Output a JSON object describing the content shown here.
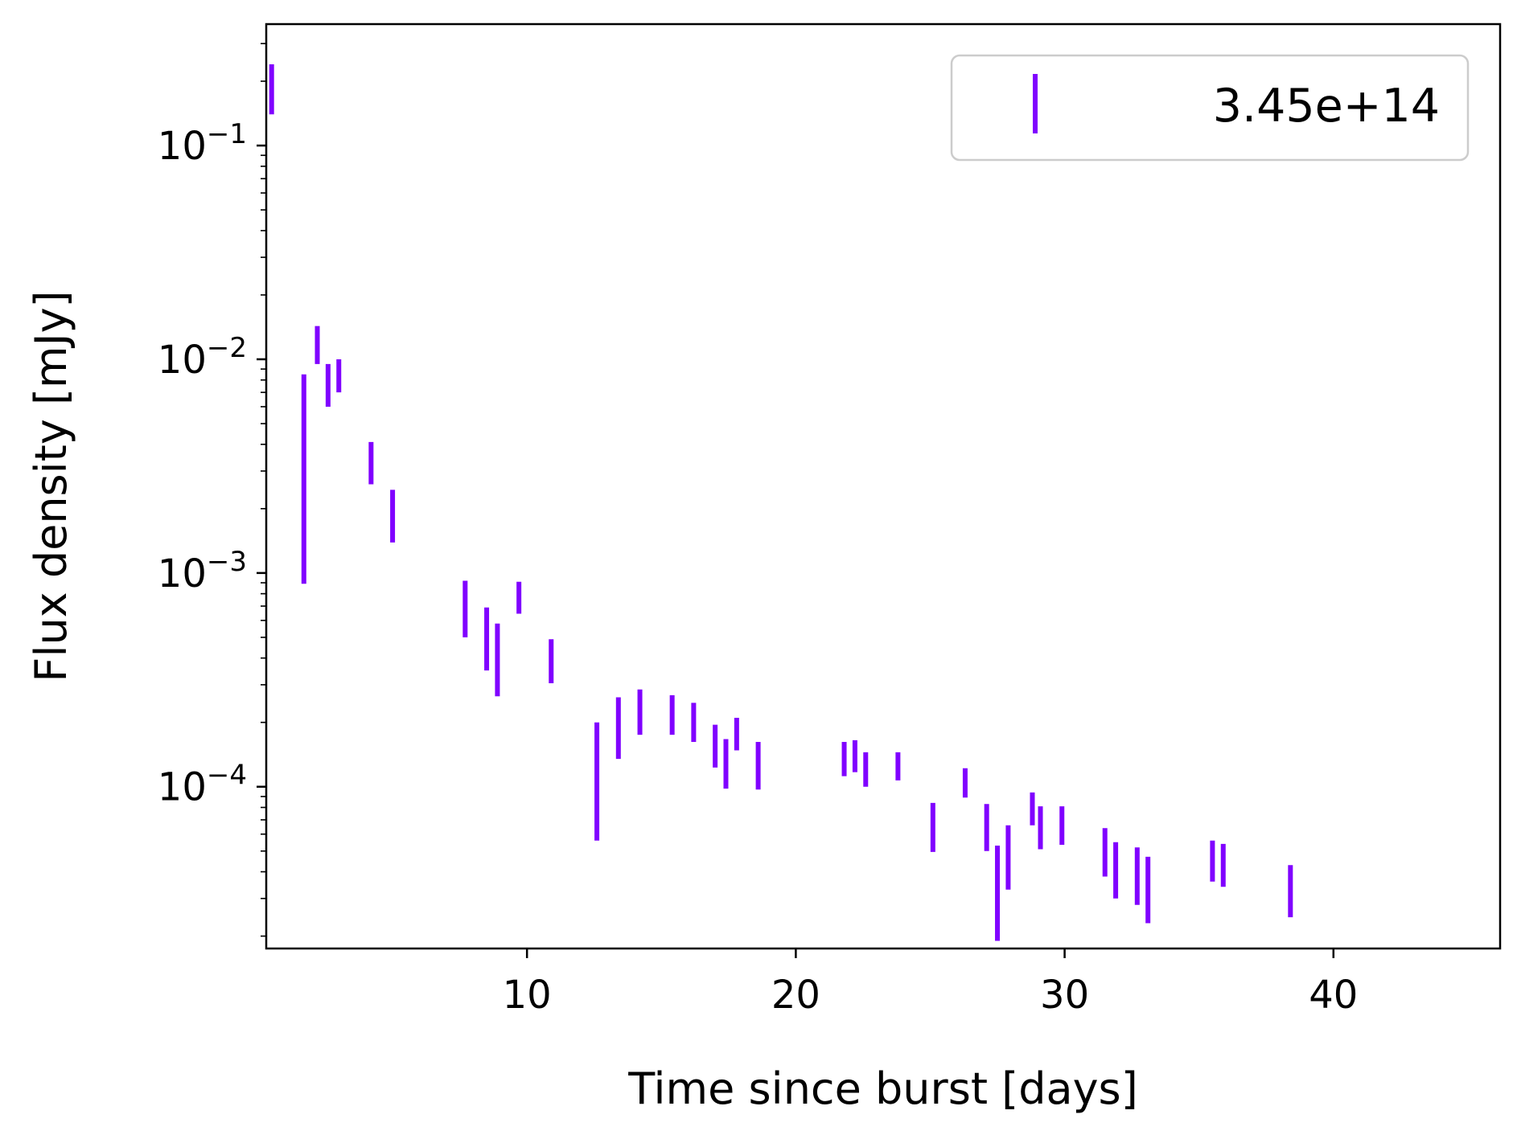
{
  "chart_data": {
    "type": "scatter",
    "marker": "errorbar",
    "xlabel": "Time since burst [days]",
    "ylabel": "Flux density [mJy]",
    "x_scale": "linear",
    "y_scale": "log",
    "xlim": [
      0.3,
      46.2
    ],
    "ylim": [
      1.75e-05,
      0.37
    ],
    "x_ticks": [
      10,
      20,
      30,
      40
    ],
    "x_tick_labels": [
      "10",
      "20",
      "30",
      "40"
    ],
    "y_ticks": [
      0.1,
      0.01,
      0.001,
      0.0001
    ],
    "y_tick_labels": [
      {
        "base": "10",
        "exp": "−1"
      },
      {
        "base": "10",
        "exp": "−2"
      },
      {
        "base": "10",
        "exp": "−3"
      },
      {
        "base": "10",
        "exp": "−4"
      }
    ],
    "grid": false,
    "legend_position": "upper right",
    "series": [
      {
        "name": "3.45e+14",
        "color": "#8000ff",
        "points": [
          {
            "x": 0.5,
            "y_low": 0.14,
            "y_high": 0.24
          },
          {
            "x": 1.7,
            "y_low": 0.00089,
            "y_high": 0.0085
          },
          {
            "x": 2.2,
            "y_low": 0.0095,
            "y_high": 0.0143
          },
          {
            "x": 2.6,
            "y_low": 0.006,
            "y_high": 0.0095
          },
          {
            "x": 3.0,
            "y_low": 0.007,
            "y_high": 0.01
          },
          {
            "x": 4.2,
            "y_low": 0.0026,
            "y_high": 0.0041
          },
          {
            "x": 5.0,
            "y_low": 0.00139,
            "y_high": 0.00245
          },
          {
            "x": 7.7,
            "y_low": 0.0005,
            "y_high": 0.00092
          },
          {
            "x": 8.5,
            "y_low": 0.00035,
            "y_high": 0.00069
          },
          {
            "x": 8.9,
            "y_low": 0.000265,
            "y_high": 0.00058
          },
          {
            "x": 9.7,
            "y_low": 0.000645,
            "y_high": 0.00091
          },
          {
            "x": 10.9,
            "y_low": 0.000305,
            "y_high": 0.00049
          },
          {
            "x": 12.6,
            "y_low": 5.6e-05,
            "y_high": 0.0002
          },
          {
            "x": 13.4,
            "y_low": 0.000135,
            "y_high": 0.000262
          },
          {
            "x": 14.2,
            "y_low": 0.000175,
            "y_high": 0.000285
          },
          {
            "x": 15.4,
            "y_low": 0.000175,
            "y_high": 0.000268
          },
          {
            "x": 16.2,
            "y_low": 0.000162,
            "y_high": 0.000247
          },
          {
            "x": 17.0,
            "y_low": 0.000123,
            "y_high": 0.000195
          },
          {
            "x": 17.4,
            "y_low": 9.8e-05,
            "y_high": 0.000167
          },
          {
            "x": 17.8,
            "y_low": 0.000148,
            "y_high": 0.00021
          },
          {
            "x": 18.6,
            "y_low": 9.7e-05,
            "y_high": 0.000162
          },
          {
            "x": 21.8,
            "y_low": 0.000112,
            "y_high": 0.000162
          },
          {
            "x": 22.2,
            "y_low": 0.000117,
            "y_high": 0.000165
          },
          {
            "x": 22.6,
            "y_low": 0.0001,
            "y_high": 0.000145
          },
          {
            "x": 23.8,
            "y_low": 0.000107,
            "y_high": 0.000145
          },
          {
            "x": 25.1,
            "y_low": 4.95e-05,
            "y_high": 8.4e-05
          },
          {
            "x": 26.3,
            "y_low": 8.9e-05,
            "y_high": 0.000122
          },
          {
            "x": 27.1,
            "y_low": 5e-05,
            "y_high": 8.3e-05
          },
          {
            "x": 27.5,
            "y_low": 1.9e-05,
            "y_high": 5.3e-05
          },
          {
            "x": 27.9,
            "y_low": 3.3e-05,
            "y_high": 6.6e-05
          },
          {
            "x": 28.8,
            "y_low": 6.6e-05,
            "y_high": 9.4e-05
          },
          {
            "x": 29.1,
            "y_low": 5.1e-05,
            "y_high": 8.1e-05
          },
          {
            "x": 29.9,
            "y_low": 5.35e-05,
            "y_high": 8.1e-05
          },
          {
            "x": 31.5,
            "y_low": 3.8e-05,
            "y_high": 6.4e-05
          },
          {
            "x": 31.9,
            "y_low": 3e-05,
            "y_high": 5.5e-05
          },
          {
            "x": 32.7,
            "y_low": 2.8e-05,
            "y_high": 5.2e-05
          },
          {
            "x": 33.1,
            "y_low": 2.3e-05,
            "y_high": 4.7e-05
          },
          {
            "x": 35.5,
            "y_low": 3.6e-05,
            "y_high": 5.6e-05
          },
          {
            "x": 35.9,
            "y_low": 3.4e-05,
            "y_high": 5.4e-05
          },
          {
            "x": 38.4,
            "y_low": 2.45e-05,
            "y_high": 4.3e-05
          }
        ]
      }
    ]
  }
}
